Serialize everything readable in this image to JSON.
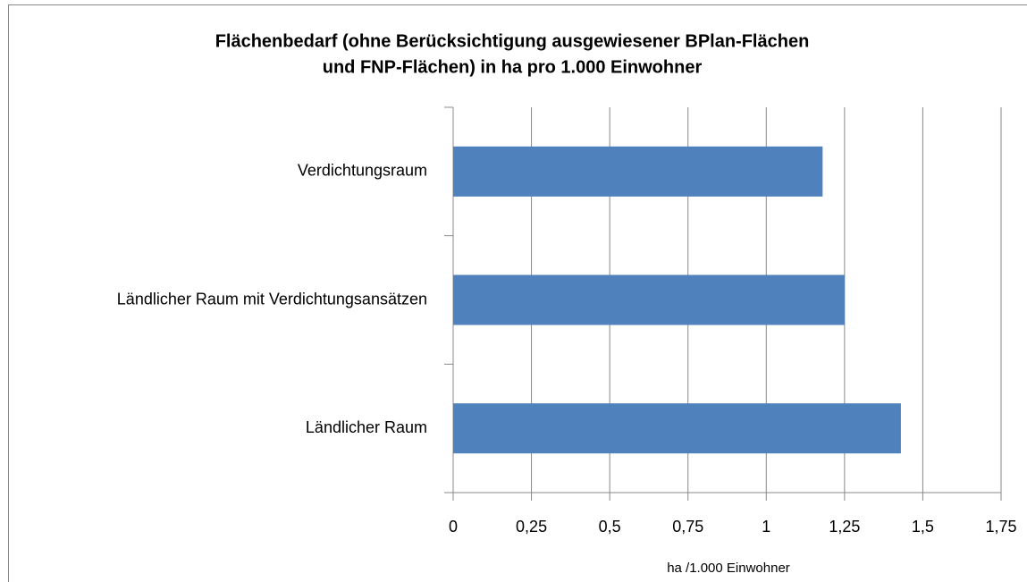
{
  "chart_data": {
    "type": "bar",
    "orientation": "horizontal",
    "title": [
      "Flächenbedarf (ohne Berücksichtigung ausgewiesener BPlan-Flächen",
      "und FNP-Flächen) in ha pro 1.000 Einwohner"
    ],
    "x_label": "ha /1.000 Einwohner",
    "categories": [
      "Verdichtungsraum",
      "Ländlicher Raum mit Verdichtungsansätzen",
      "Ländlicher Raum"
    ],
    "values": [
      1.18,
      1.25,
      1.43
    ],
    "color": "#4f81bd",
    "xlim": [
      0,
      1.75
    ],
    "xticks": [
      0,
      {
        "value": 0.25,
        "label": "0,25"
      },
      {
        "value": 0.5,
        "label": "0,5"
      },
      {
        "value": 0.75,
        "label": "0,75"
      },
      1,
      {
        "value": 1.25,
        "label": "1,25"
      },
      {
        "value": 1.5,
        "label": "1,5"
      },
      {
        "value": 1.75,
        "label": "1,75"
      }
    ],
    "grid": true
  }
}
